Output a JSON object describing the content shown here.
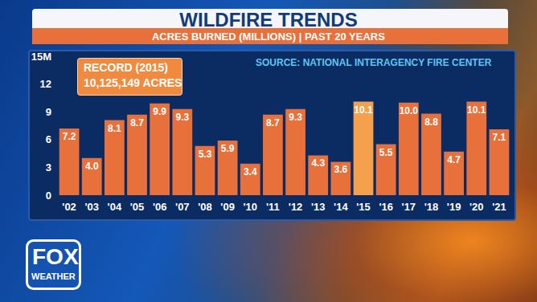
{
  "chart_data": {
    "type": "bar",
    "title": "WILDFIRE TRENDS",
    "subtitle": "ACRES BURNED (MILLIONS) | PAST 20 YEARS",
    "source": "SOURCE: NATIONAL INTERAGENCY FIRE CENTER",
    "annotations": [
      "RECORD (2015)",
      "10,125,149 ACRES"
    ],
    "branding": [
      "FOX",
      "WEATHER"
    ],
    "categories": [
      "'02",
      "'03",
      "'04",
      "'05",
      "'06",
      "'07",
      "'08",
      "'09",
      "'10",
      "'11",
      "'12",
      "'13",
      "'14",
      "'15",
      "'16",
      "'17",
      "'18",
      "'19",
      "'20",
      "'21"
    ],
    "values": [
      7.2,
      4.0,
      8.1,
      8.7,
      9.9,
      9.3,
      5.3,
      5.9,
      3.4,
      8.7,
      9.3,
      4.3,
      3.6,
      10.1,
      5.5,
      10.0,
      8.8,
      4.7,
      10.1,
      7.1
    ],
    "value_labels": [
      "7.2",
      "4.0",
      "8.1",
      "8.7",
      "9.9",
      "9.3",
      "5.3",
      "5.9",
      "3.4",
      "8.7",
      "9.3",
      "4.3",
      "3.6",
      "10.1",
      "5.5",
      "10.0",
      "8.8",
      "4.7",
      "10.1",
      "7.1"
    ],
    "colors": [
      "#e8703a",
      "#e8703a",
      "#e8703a",
      "#e8703a",
      "#e8703a",
      "#e8703a",
      "#e8703a",
      "#e8703a",
      "#e8703a",
      "#e8703a",
      "#e8703a",
      "#e8703a",
      "#e8703a",
      "#f5a04c",
      "#e8703a",
      "#e8703a",
      "#e8703a",
      "#e8703a",
      "#e8703a",
      "#e8703a"
    ],
    "ylim": [
      0,
      15
    ],
    "yticks": [
      0,
      3,
      6,
      9,
      12,
      {
        "value": 15,
        "label": "15M"
      }
    ],
    "grid": false,
    "data_labels": true
  }
}
